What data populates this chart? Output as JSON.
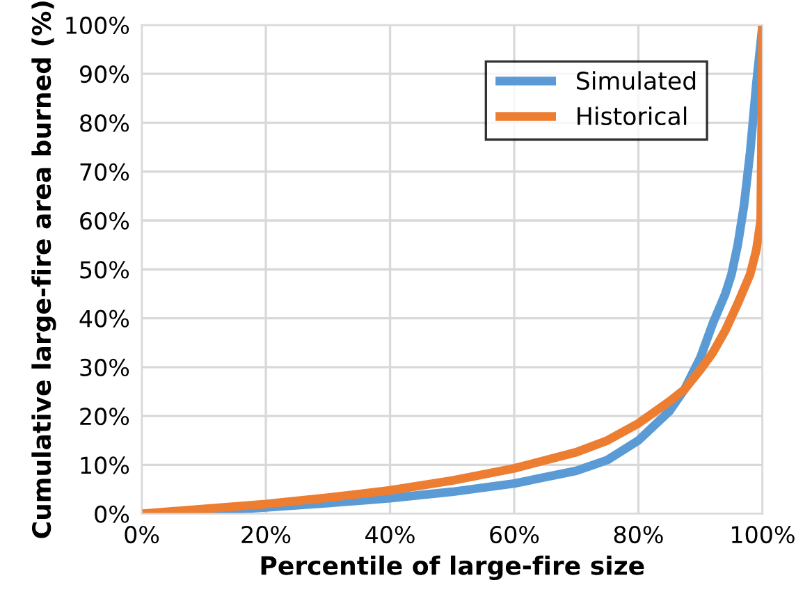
{
  "chart_data": {
    "type": "line",
    "xlabel": "Percentile of large-fire size",
    "ylabel": "Cumulative large-fire area burned (%)",
    "series": [
      {
        "name": "Simulated",
        "color": "#5b9bd5",
        "x": [
          0,
          10,
          20,
          30,
          40,
          50,
          60,
          70,
          75,
          80,
          85,
          87.4,
          90,
          92,
          94,
          95,
          96,
          97,
          98,
          99,
          100
        ],
        "values": [
          0,
          0.5,
          1.3,
          2.2,
          3.2,
          4.5,
          6.2,
          8.8,
          11,
          15,
          21,
          25.4,
          32,
          39,
          45,
          49,
          55,
          63,
          74,
          88,
          100
        ]
      },
      {
        "name": "Historical",
        "color": "#ed7d31",
        "x": [
          0,
          10,
          20,
          30,
          40,
          50,
          60,
          70,
          75,
          80,
          85,
          87.4,
          90,
          92,
          94,
          96,
          97,
          98,
          99,
          99.7,
          100
        ],
        "values": [
          0,
          1,
          2,
          3.3,
          4.8,
          6.8,
          9.3,
          12.6,
          15,
          18.5,
          23,
          25.4,
          29.5,
          33,
          37.5,
          43,
          46,
          49,
          54,
          60,
          100
        ]
      }
    ],
    "xlim": [
      0,
      100
    ],
    "ylim": [
      0,
      100
    ],
    "xticks": [
      {
        "value": 0,
        "label": "0%"
      },
      {
        "value": 20,
        "label": "20%"
      },
      {
        "value": 40,
        "label": "40%"
      },
      {
        "value": 60,
        "label": "60%"
      },
      {
        "value": 80,
        "label": "80%"
      },
      {
        "value": 100,
        "label": "100%"
      }
    ],
    "yticks": [
      {
        "value": 0,
        "label": "0%"
      },
      {
        "value": 10,
        "label": "10%"
      },
      {
        "value": 20,
        "label": "20%"
      },
      {
        "value": 30,
        "label": "30%"
      },
      {
        "value": 40,
        "label": "40%"
      },
      {
        "value": 50,
        "label": "50%"
      },
      {
        "value": 60,
        "label": "60%"
      },
      {
        "value": 70,
        "label": "70%"
      },
      {
        "value": 80,
        "label": "80%"
      },
      {
        "value": 90,
        "label": "90%"
      },
      {
        "value": 100,
        "label": "100%"
      }
    ],
    "grid": true,
    "legend": "top right",
    "marker": "none",
    "line_style": "solid"
  }
}
